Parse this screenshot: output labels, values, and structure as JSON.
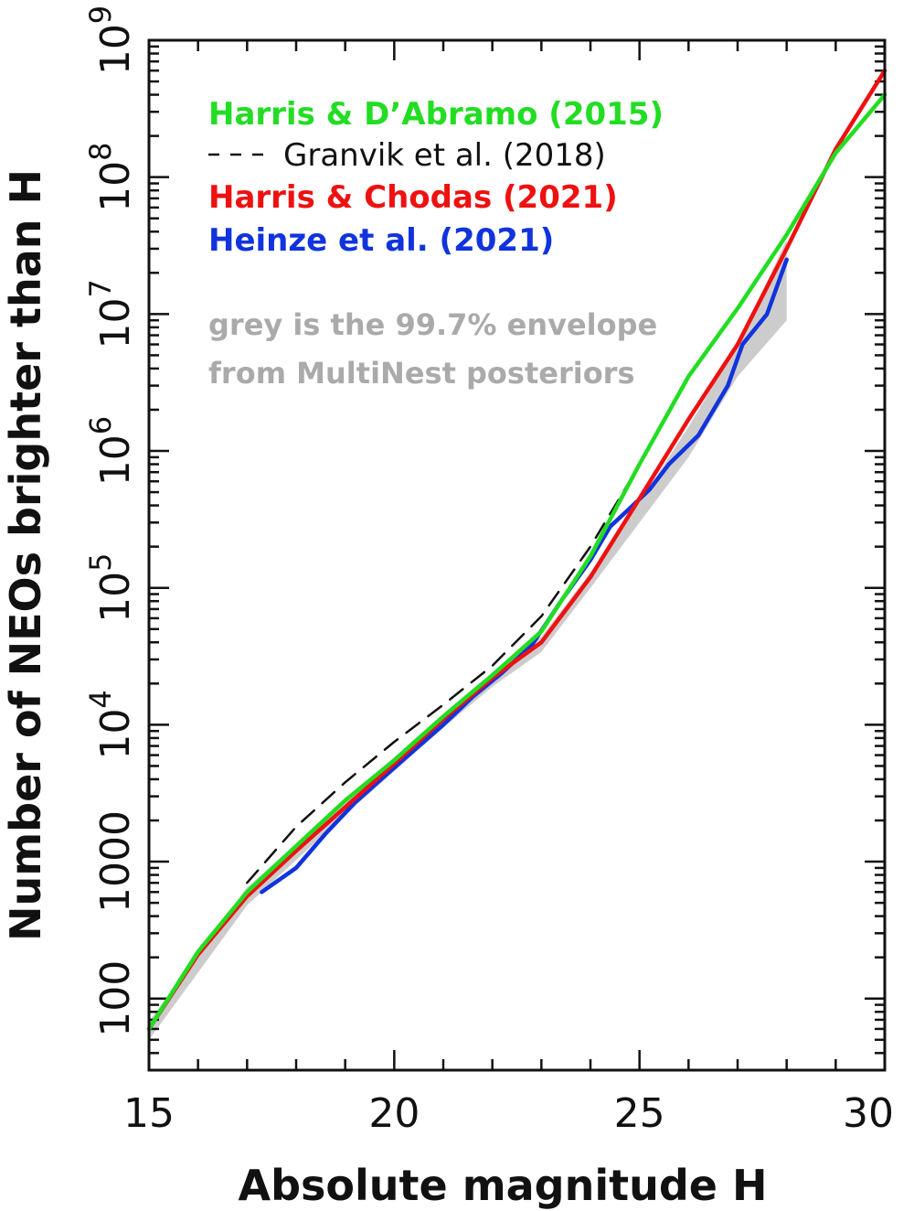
{
  "chart_data": {
    "type": "line",
    "xlabel": "Absolute magnitude H",
    "ylabel": "Number of NEOs brighter than H",
    "xlim": [
      15,
      30
    ],
    "ylim": [
      30,
      1000000000
    ],
    "y_scale": "log",
    "x_ticks": [
      15,
      20,
      25,
      30
    ],
    "x_tick_labels": [
      "15",
      "20",
      "25",
      "30"
    ],
    "y_ticks": [
      100,
      1000,
      10000,
      100000,
      1000000,
      10000000,
      100000000,
      1000000000
    ],
    "y_tick_labels": [
      {
        "base": "100",
        "exp": ""
      },
      {
        "base": "1000",
        "exp": ""
      },
      {
        "base": "10",
        "exp": "4"
      },
      {
        "base": "10",
        "exp": "5"
      },
      {
        "base": "10",
        "exp": "6"
      },
      {
        "base": "10",
        "exp": "7"
      },
      {
        "base": "10",
        "exp": "8"
      },
      {
        "base": "10",
        "exp": "9"
      }
    ],
    "grid": false,
    "legend_position": "top-left",
    "series": [
      {
        "name": "Harris & D’Abramo (2015)",
        "color": "#22dd22",
        "style": "solid",
        "x": [
          15,
          16,
          17,
          18,
          19,
          20,
          21,
          22,
          23,
          24,
          25,
          26,
          27,
          28,
          29,
          30
        ],
        "y": [
          60,
          220,
          600,
          1300,
          2800,
          5500,
          11500,
          23000,
          48000,
          170000,
          800000,
          3500000,
          11000000,
          38000000,
          150000000,
          400000000
        ]
      },
      {
        "name": "Granvik et al. (2018)",
        "color": "#111111",
        "style": "dashed",
        "x": [
          17,
          18,
          19,
          20,
          21,
          22,
          23,
          24,
          24.8
        ],
        "y": [
          700,
          1800,
          3800,
          7500,
          14000,
          27000,
          62000,
          200000,
          600000
        ]
      },
      {
        "name": "Harris & Chodas (2021)",
        "color": "#ee1111",
        "style": "solid",
        "x": [
          15,
          16,
          17,
          18,
          19,
          20,
          21,
          22,
          23,
          24,
          25,
          26,
          27,
          28,
          29,
          30
        ],
        "y": [
          60,
          210,
          560,
          1200,
          2500,
          5200,
          11000,
          22000,
          40000,
          120000,
          450000,
          1700000,
          6000000,
          30000000,
          160000000,
          600000000
        ]
      },
      {
        "name": "Heinze et al. (2021)",
        "color": "#1133dd",
        "style": "solid",
        "x": [
          17.3,
          18,
          18.6,
          19.2,
          19.8,
          20.4,
          21,
          21.6,
          22.2,
          22.8,
          23.4,
          24,
          24.4,
          24.8,
          25.2,
          25.6,
          26.2,
          26.8,
          27.1,
          27.6,
          28
        ],
        "y": [
          600,
          900,
          1600,
          2700,
          4200,
          6500,
          10000,
          16000,
          24000,
          38000,
          80000,
          160000,
          280000,
          380000,
          520000,
          800000,
          1300000,
          3000000,
          6000000,
          10000000,
          25000000
        ]
      }
    ],
    "envelope": {
      "color": "#bbbbbb",
      "x": [
        15,
        17,
        19,
        21,
        22,
        23,
        24,
        25,
        26,
        27,
        28
      ],
      "low": [
        50,
        480,
        2200,
        9500,
        19000,
        34000,
        100000,
        300000,
        900000,
        3500000,
        9000000
      ],
      "high": [
        68,
        650,
        2800,
        12000,
        24000,
        44000,
        130000,
        420000,
        1500000,
        6000000,
        35000000
      ]
    },
    "annotation": [
      "grey is the 99.7% envelope",
      "from MultiNest posteriors"
    ]
  }
}
